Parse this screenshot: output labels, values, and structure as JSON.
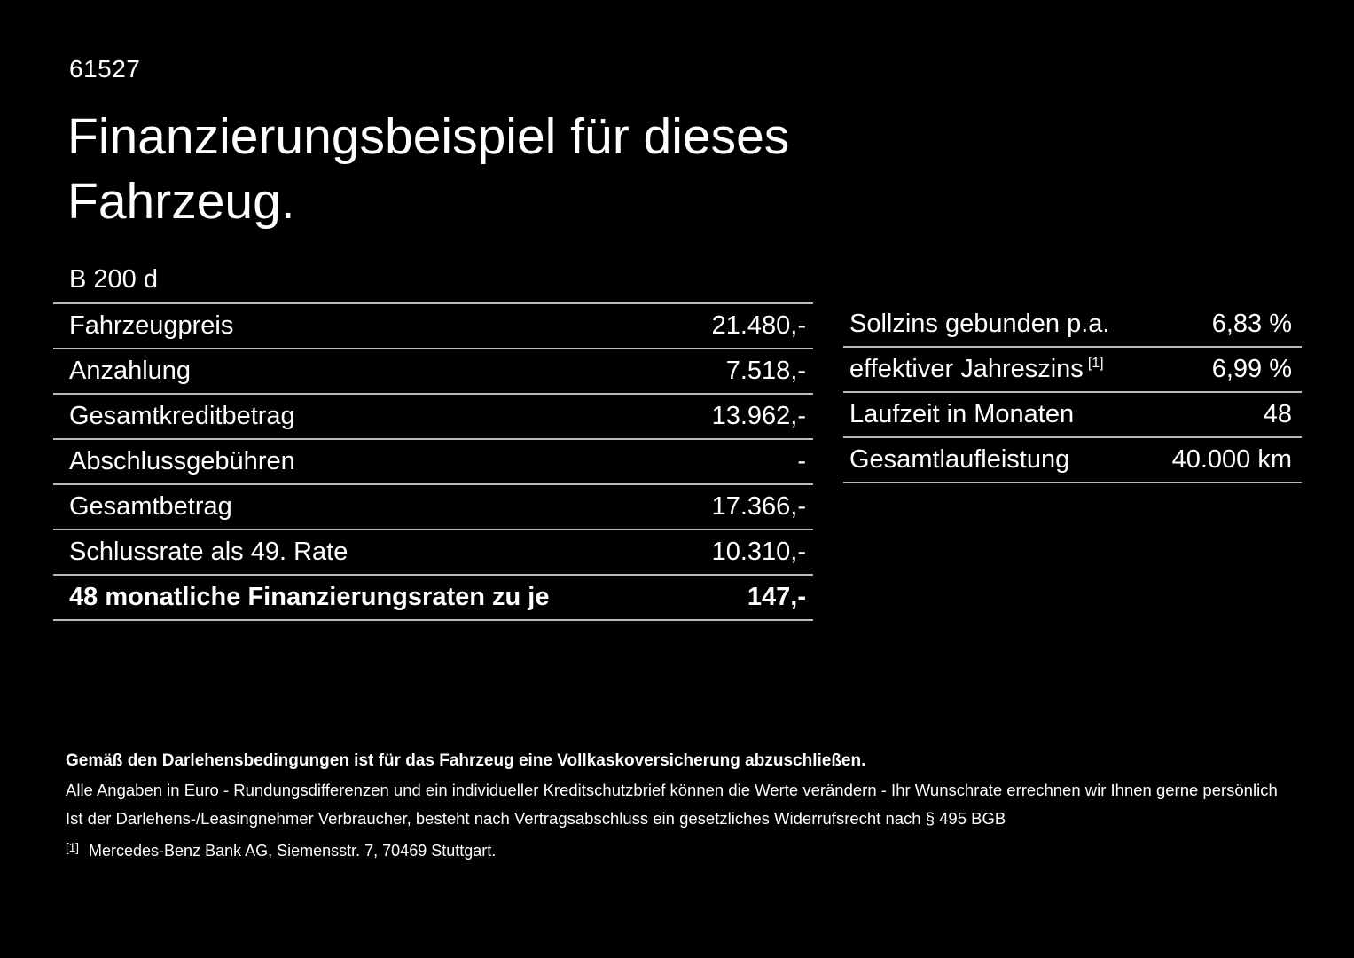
{
  "page": {
    "doc_id": "61527",
    "title_line1": "Finanzierungsbeispiel für dieses",
    "title_line2": "Fahrzeug.",
    "model": "B 200 d"
  },
  "left_table": {
    "rows": [
      {
        "label": "Fahrzeugpreis",
        "value": "21.480,-"
      },
      {
        "label": "Anzahlung",
        "value": "7.518,-"
      },
      {
        "label": "Gesamtkreditbetrag",
        "value": "13.962,-"
      },
      {
        "label": "Abschlussgebühren",
        "value": "-"
      },
      {
        "label": "Gesamtbetrag",
        "value": "17.366,-"
      },
      {
        "label": "Schlussrate als 49. Rate",
        "value": "10.310,-"
      },
      {
        "label": "48 monatliche Finanzierungsraten zu je",
        "value": "147,-"
      }
    ]
  },
  "right_table": {
    "rows": [
      {
        "label": "Sollzins gebunden p.a.",
        "value": "6,83 %"
      },
      {
        "label": "effektiver Jahreszins",
        "label_sup": "[1]",
        "value": "6,99 %"
      },
      {
        "label": "Laufzeit in Monaten",
        "value": "48"
      },
      {
        "label": "Gesamtlaufleistung",
        "value": "40.000 km"
      }
    ]
  },
  "footer": {
    "bold_note": "Gemäß den Darlehensbedingungen ist für das Fahrzeug eine Vollkaskoversicherung abzuschließen.",
    "note_line1": "Alle Angaben in Euro - Rundungsdifferenzen und ein individueller Kreditschutzbrief können die Werte verändern - Ihr Wunschrate errechnen wir Ihnen gerne persönlich",
    "note_line2": "Ist der Darlehens-/Leasingnehmer Verbraucher, besteht nach Vertragsabschluss ein gesetzliches Widerrufsrecht nach § 495 BGB",
    "footnote_marker": "[1]",
    "footnote_text": "Mercedes-Benz Bank AG, Siemensstr. 7, 70469 Stuttgart."
  },
  "colors": {
    "background": "#000000",
    "text": "#ffffff",
    "divider": "#b9b9b9"
  }
}
